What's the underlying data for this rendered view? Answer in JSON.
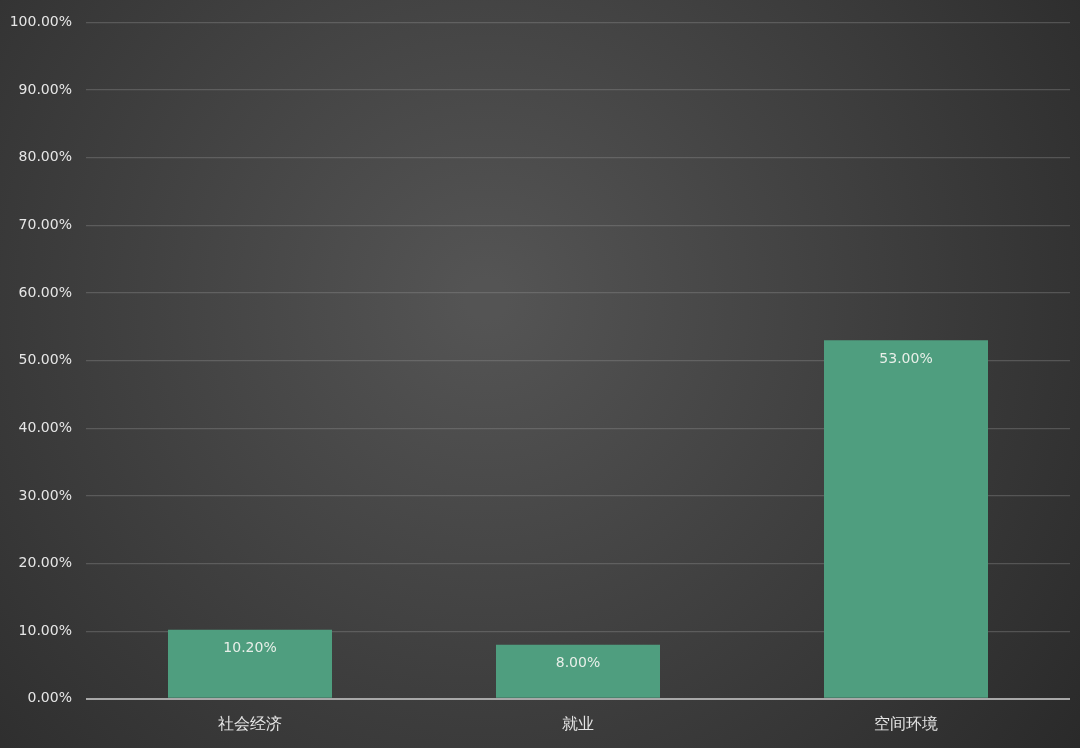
{
  "chart_data": {
    "type": "bar",
    "categories": [
      "社会经济",
      "就业",
      "空间环境"
    ],
    "values": [
      10.2,
      8.0,
      53.0
    ],
    "color": "#4f9e7f",
    "value_labels": [
      "10.20%",
      "8.00%",
      "53.00%"
    ],
    "ylim": [
      0,
      100
    ],
    "yticks": [
      {
        "value": 0,
        "label": "0.00%"
      },
      {
        "value": 10,
        "label": "10.00%"
      },
      {
        "value": 20,
        "label": "20.00%"
      },
      {
        "value": 30,
        "label": "30.00%"
      },
      {
        "value": 40,
        "label": "40.00%"
      },
      {
        "value": 50,
        "label": "50.00%"
      },
      {
        "value": 60,
        "label": "60.00%"
      },
      {
        "value": 70,
        "label": "70.00%"
      },
      {
        "value": 80,
        "label": "80.00%"
      },
      {
        "value": 90,
        "label": "90.00%"
      },
      {
        "value": 100,
        "label": "100.00%"
      }
    ],
    "grid": "y",
    "legend": false
  }
}
